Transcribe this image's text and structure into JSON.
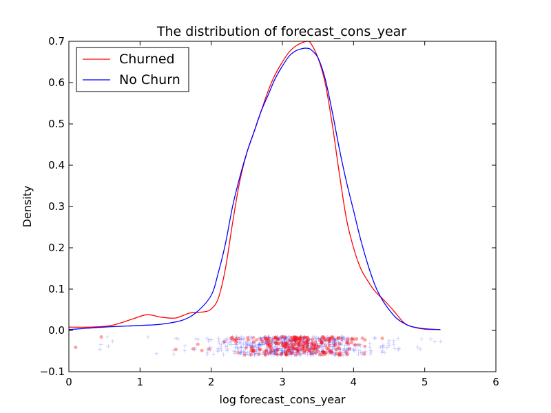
{
  "chart_data": {
    "type": "line",
    "title": "The distribution of forecast_cons_year",
    "xlabel": "log forecast_cons_year",
    "ylabel": "Density",
    "xlim": [
      0,
      6
    ],
    "ylim": [
      -0.1,
      0.7
    ],
    "xticks": [
      "0",
      "1",
      "2",
      "3",
      "4",
      "5",
      "6"
    ],
    "yticks": [
      "−0.1",
      "0.0",
      "0.1",
      "0.2",
      "0.3",
      "0.4",
      "0.5",
      "0.6",
      "0.7"
    ],
    "grid": false,
    "legend_position": "top-left",
    "series": [
      {
        "name": "Churned",
        "color": "#ff0000",
        "x": [
          0,
          0.3,
          0.6,
          0.9,
          1.1,
          1.3,
          1.5,
          1.7,
          1.9,
          2.0,
          2.1,
          2.2,
          2.3,
          2.4,
          2.5,
          2.6,
          2.7,
          2.8,
          2.9,
          3.0,
          3.1,
          3.2,
          3.3,
          3.35,
          3.4,
          3.5,
          3.6,
          3.7,
          3.8,
          3.9,
          4.0,
          4.1,
          4.2,
          4.3,
          4.4,
          4.5,
          4.6,
          4.7,
          4.8,
          5.0,
          5.22
        ],
        "y": [
          0.008,
          0.008,
          0.012,
          0.028,
          0.038,
          0.032,
          0.03,
          0.042,
          0.045,
          0.052,
          0.078,
          0.15,
          0.26,
          0.36,
          0.43,
          0.48,
          0.53,
          0.58,
          0.62,
          0.65,
          0.675,
          0.69,
          0.698,
          0.7,
          0.695,
          0.66,
          0.6,
          0.5,
          0.38,
          0.27,
          0.2,
          0.15,
          0.12,
          0.095,
          0.078,
          0.06,
          0.04,
          0.02,
          0.01,
          0.003,
          0.002
        ]
      },
      {
        "name": "No Churn",
        "color": "#0000ff",
        "x": [
          0,
          0.5,
          1.0,
          1.3,
          1.6,
          1.8,
          2.0,
          2.1,
          2.2,
          2.3,
          2.4,
          2.5,
          2.6,
          2.7,
          2.8,
          2.9,
          3.0,
          3.1,
          3.2,
          3.3,
          3.35,
          3.4,
          3.5,
          3.6,
          3.7,
          3.8,
          3.9,
          4.0,
          4.1,
          4.2,
          4.3,
          4.4,
          4.5,
          4.6,
          4.7,
          4.8,
          5.0,
          5.22
        ],
        "y": [
          0.002,
          0.008,
          0.012,
          0.015,
          0.025,
          0.045,
          0.085,
          0.14,
          0.21,
          0.3,
          0.37,
          0.43,
          0.48,
          0.53,
          0.57,
          0.61,
          0.64,
          0.665,
          0.678,
          0.683,
          0.683,
          0.68,
          0.66,
          0.61,
          0.53,
          0.44,
          0.36,
          0.29,
          0.22,
          0.16,
          0.11,
          0.075,
          0.05,
          0.03,
          0.018,
          0.01,
          0.004,
          0.002
        ]
      }
    ],
    "rug": [
      {
        "name": "No Churn",
        "color": "#0000ff",
        "marker": "plus",
        "y_range": [
          -0.06,
          -0.015
        ],
        "x_center": 3.1,
        "x_spread": 0.55,
        "x_min": 0.0,
        "x_max": 5.3,
        "count": 600
      },
      {
        "name": "Churned",
        "color": "#ff0000",
        "marker": "dot",
        "y_range": [
          -0.06,
          -0.015
        ],
        "x_center": 3.2,
        "x_spread": 0.45,
        "x_min": 0.0,
        "x_max": 4.6,
        "count": 260
      }
    ]
  }
}
